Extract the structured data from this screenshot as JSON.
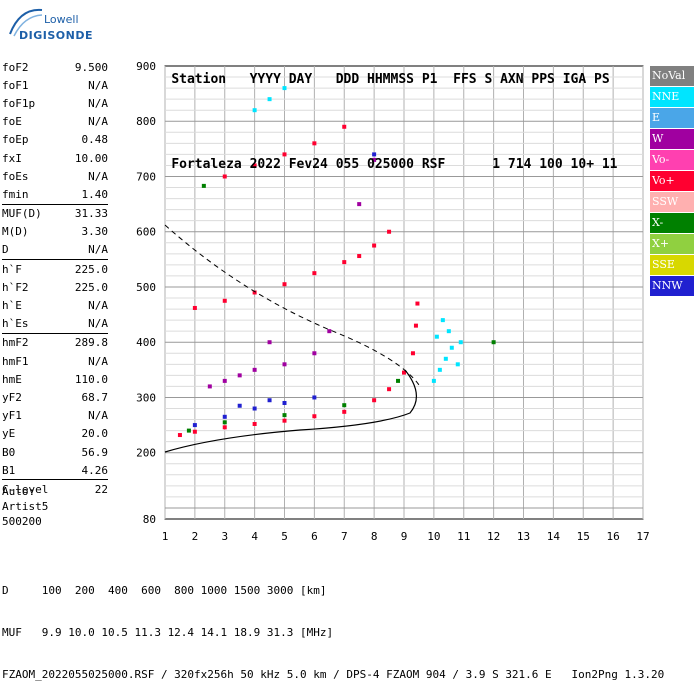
{
  "logo": {
    "line1": "Lowell",
    "line2": "DIGISONDE"
  },
  "header": {
    "row1": [
      "Station",
      "YYYY",
      "DAY",
      "DDD",
      "HHMMSS",
      "P1",
      "FFS",
      "S",
      "AXN",
      "PPS",
      "IGA",
      "PS"
    ],
    "row2": [
      "Fortaleza",
      "2022",
      "Fev24",
      "055",
      "025000",
      "RSF",
      "",
      "1",
      "714",
      "100",
      "10+",
      "11"
    ]
  },
  "params": [
    {
      "group": [
        {
          "label": "foF2",
          "value": "9.500"
        },
        {
          "label": "foF1",
          "value": "N/A"
        },
        {
          "label": "foF1p",
          "value": "N/A"
        },
        {
          "label": "foE",
          "value": "N/A"
        },
        {
          "label": "foEp",
          "value": "0.48"
        },
        {
          "label": "fxI",
          "value": "10.00"
        },
        {
          "label": "foEs",
          "value": "N/A"
        },
        {
          "label": "fmin",
          "value": "1.40"
        }
      ]
    },
    {
      "group": [
        {
          "label": "MUF(D)",
          "value": "31.33"
        },
        {
          "label": "M(D)",
          "value": "3.30"
        },
        {
          "label": "D",
          "value": "N/A"
        }
      ]
    },
    {
      "group": [
        {
          "label": "h`F",
          "value": "225.0"
        },
        {
          "label": "h`F2",
          "value": "225.0"
        },
        {
          "label": "h`E",
          "value": "N/A"
        },
        {
          "label": "h`Es",
          "value": "N/A"
        }
      ]
    },
    {
      "group": [
        {
          "label": "hmF2",
          "value": "289.8"
        },
        {
          "label": "hmF1",
          "value": "N/A"
        },
        {
          "label": "hmE",
          "value": "110.0"
        },
        {
          "label": "yF2",
          "value": "68.7"
        },
        {
          "label": "yF1",
          "value": "N/A"
        },
        {
          "label": "yE",
          "value": "20.0"
        },
        {
          "label": "B0",
          "value": "56.9"
        },
        {
          "label": "B1",
          "value": "4.26"
        }
      ]
    },
    {
      "group": [
        {
          "label": "C-level",
          "value": "22"
        }
      ]
    }
  ],
  "auto": [
    "Auto:",
    "Artist5",
    "500200"
  ],
  "legend": [
    {
      "label": "NoVal",
      "color": "#808080"
    },
    {
      "label": "NNE",
      "color": "#00e5ff"
    },
    {
      "label": "E",
      "color": "#4aa6e8"
    },
    {
      "label": "W",
      "color": "#a000a0"
    },
    {
      "label": "Vo-",
      "color": "#ff40b0"
    },
    {
      "label": "Vo+",
      "color": "#ff0030"
    },
    {
      "label": "SSW",
      "color": "#ffb0b0"
    },
    {
      "label": "X-",
      "color": "#008000"
    },
    {
      "label": "X+",
      "color": "#90d040"
    },
    {
      "label": "SSE",
      "color": "#d8d800"
    },
    {
      "label": "NNW",
      "color": "#2020d0"
    }
  ],
  "bottom": {
    "line1": "D     100  200  400  600  800 1000 1500 3000 [km]",
    "line2": "MUF   9.9 10.0 10.5 11.3 12.4 14.1 18.9 31.3 [MHz]",
    "line3": "FZAOM_2022055025000.RSF / 320fx256h 50 kHz 5.0 km / DPS-4 FZAOM 904 / 3.9 S 321.6 E   Ion2Png 1.3.20"
  },
  "chart_data": {
    "type": "scatter",
    "xlim": [
      1,
      17
    ],
    "ylim": [
      80,
      900
    ],
    "x_ticks": [
      1,
      2,
      3,
      4,
      5,
      6,
      7,
      8,
      9,
      10,
      11,
      12,
      13,
      14,
      15,
      16,
      17
    ],
    "y_ticks": [
      80,
      200,
      300,
      400,
      500,
      600,
      700,
      800,
      900
    ],
    "grid": true,
    "series": [
      {
        "name": "NNE",
        "color": "#00e5ff",
        "points": [
          [
            10.0,
            330
          ],
          [
            10.2,
            350
          ],
          [
            10.4,
            370
          ],
          [
            10.6,
            390
          ],
          [
            10.1,
            410
          ],
          [
            10.3,
            440
          ],
          [
            10.5,
            420
          ],
          [
            10.8,
            360
          ],
          [
            10.9,
            400
          ],
          [
            4.0,
            820
          ],
          [
            4.5,
            840
          ],
          [
            5.0,
            860
          ]
        ]
      },
      {
        "name": "W",
        "color": "#a000a0",
        "points": [
          [
            3.0,
            330
          ],
          [
            3.5,
            340
          ],
          [
            4.0,
            350
          ],
          [
            5.0,
            360
          ],
          [
            6.0,
            380
          ],
          [
            2.5,
            320
          ],
          [
            4.5,
            400
          ],
          [
            6.5,
            420
          ],
          [
            7.5,
            650
          ],
          [
            8.0,
            730
          ]
        ]
      },
      {
        "name": "Vo+",
        "color": "#ff0030",
        "points": [
          [
            1.5,
            232
          ],
          [
            2.0,
            238
          ],
          [
            3.0,
            246
          ],
          [
            4.0,
            252
          ],
          [
            5.0,
            258
          ],
          [
            6.0,
            266
          ],
          [
            7.0,
            274
          ],
          [
            8.0,
            295
          ],
          [
            8.5,
            315
          ],
          [
            9.0,
            345
          ],
          [
            9.3,
            380
          ],
          [
            9.4,
            430
          ],
          [
            9.45,
            470
          ],
          [
            2.0,
            462
          ],
          [
            3.0,
            475
          ],
          [
            4.0,
            490
          ],
          [
            5.0,
            505
          ],
          [
            6.0,
            525
          ],
          [
            7.0,
            545
          ],
          [
            7.5,
            556
          ],
          [
            8.0,
            575
          ],
          [
            8.5,
            600
          ],
          [
            3.0,
            700
          ],
          [
            4.0,
            720
          ],
          [
            5.0,
            740
          ],
          [
            6.0,
            760
          ],
          [
            7.0,
            790
          ]
        ]
      },
      {
        "name": "X-",
        "color": "#008000",
        "points": [
          [
            1.8,
            240
          ],
          [
            3.0,
            255
          ],
          [
            5.0,
            268
          ],
          [
            7.0,
            286
          ],
          [
            8.8,
            330
          ],
          [
            2.3,
            683
          ],
          [
            12.0,
            400
          ]
        ]
      },
      {
        "name": "NNW",
        "color": "#2020d0",
        "points": [
          [
            2.0,
            250
          ],
          [
            3.0,
            265
          ],
          [
            4.0,
            280
          ],
          [
            5.0,
            290
          ],
          [
            6.0,
            300
          ],
          [
            3.5,
            285
          ],
          [
            4.5,
            295
          ],
          [
            8.0,
            740
          ]
        ]
      }
    ]
  }
}
